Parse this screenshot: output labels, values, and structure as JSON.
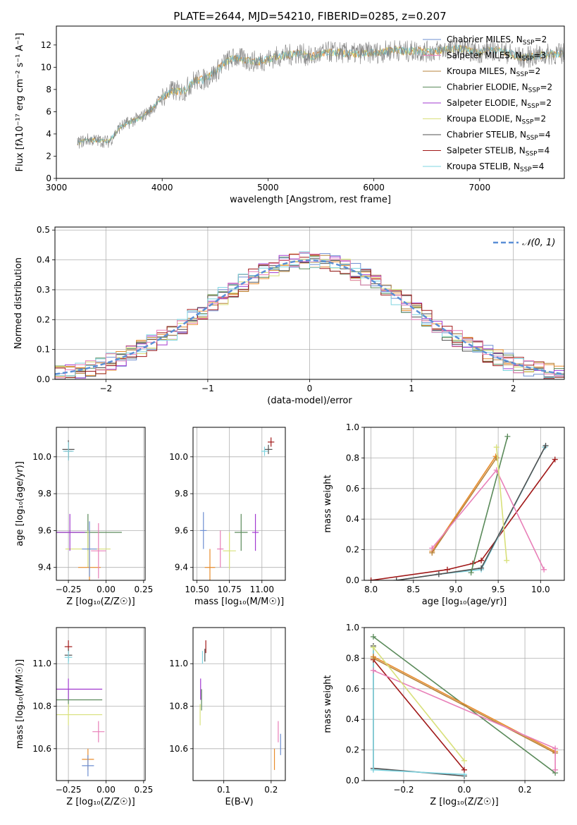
{
  "figure": {
    "title": "PLATE=2644, MJD=54210, FIBERID=0285, z=0.207"
  },
  "colors": {
    "Chabrier MILES": "#6e8fd2",
    "Salpeter MILES": "#e88c2b",
    "Kroupa MILES": "#b8843c",
    "Chabrier ELODIE": "#5a8a5a",
    "Salpeter ELODIE": "#a23ad0",
    "Kroupa ELODIE": "#d8e07a",
    "Chabrier STELIB": "#505050",
    "Salpeter STELIB": "#a01818",
    "Kroupa STELIB": "#7fd4e0",
    "pink": "#e87fb8",
    "normal": "#5b8fd6"
  },
  "legend_spectrum": [
    {
      "label": "Chabrier MILES, N",
      "sub": "SSP",
      "tail": "=2",
      "color": "#6e8fd2"
    },
    {
      "label": "Salpeter MILES, N",
      "sub": "SSP",
      "tail": "=3",
      "color": "#e87fb8"
    },
    {
      "label": "Kroupa MILES, N",
      "sub": "SSP",
      "tail": "=2",
      "color": "#b8843c"
    },
    {
      "label": "Chabrier ELODIE, N",
      "sub": "SSP",
      "tail": "=2",
      "color": "#5a8a5a"
    },
    {
      "label": "Salpeter ELODIE, N",
      "sub": "SSP",
      "tail": "=2",
      "color": "#a23ad0"
    },
    {
      "label": "Kroupa ELODIE, N",
      "sub": "SSP",
      "tail": "=2",
      "color": "#d8e07a"
    },
    {
      "label": "Chabrier STELIB, N",
      "sub": "SSP",
      "tail": "=4",
      "color": "#505050"
    },
    {
      "label": "Salpeter STELIB, N",
      "sub": "SSP",
      "tail": "=4",
      "color": "#a01818"
    },
    {
      "label": "Kroupa STELIB, N",
      "sub": "SSP",
      "tail": "=4",
      "color": "#7fd4e0"
    }
  ],
  "chart_data": [
    {
      "type": "line",
      "id": "spectrum",
      "xlabel": "wavelength [Angstrom, rest frame]",
      "ylabel": "Flux [fλ10⁻¹⁷ erg cm⁻² s⁻¹ A⁻¹]",
      "xlim": [
        3000,
        7800
      ],
      "ylim": [
        0,
        13.7
      ],
      "xticks": [
        3000,
        4000,
        5000,
        6000,
        7000
      ],
      "yticks": [
        0,
        2,
        4,
        6,
        8,
        10,
        12
      ],
      "grid": false,
      "legend": "right",
      "x": [
        3200,
        3300,
        3400,
        3500,
        3600,
        3700,
        3800,
        3900,
        4000,
        4100,
        4200,
        4300,
        4400,
        4500,
        4600,
        4700,
        4800,
        4900,
        5000,
        5100,
        5200,
        5300,
        5400,
        5500,
        5600,
        5700,
        5800,
        5900,
        6000,
        6100,
        6200,
        6300,
        6400,
        6500,
        6600,
        6700,
        6800,
        6900,
        7000,
        7100,
        7200,
        7300,
        7400,
        7500,
        7600,
        7700
      ],
      "y": [
        3.2,
        3.5,
        3.4,
        3.3,
        4.6,
        5.1,
        5.5,
        6.2,
        7.3,
        7.9,
        7.8,
        8.8,
        8.9,
        9.5,
        10.5,
        10.9,
        10.6,
        10.5,
        10.7,
        11.0,
        11.1,
        11.3,
        10.9,
        11.2,
        11.4,
        11.3,
        11.2,
        11.3,
        11.3,
        11.4,
        11.6,
        11.4,
        11.5,
        11.4,
        11.5,
        11.6,
        11.7,
        11.5,
        11.3,
        11.6,
        11.4,
        11.2,
        10.8,
        11.0,
        11.1,
        11.2
      ]
    },
    {
      "type": "line",
      "id": "residuals",
      "xlabel": "(data-model)/error",
      "ylabel": "Normed distribution",
      "xlim": [
        -2.5,
        2.5
      ],
      "ylim": [
        0,
        0.51
      ],
      "xticks": [
        -2,
        -1,
        0,
        1,
        2
      ],
      "yticks": [
        0.0,
        0.1,
        0.2,
        0.3,
        0.4,
        0.5
      ],
      "grid": true,
      "legend": "top-right",
      "legend_label": "𝒩(0, 1)"
    },
    {
      "type": "scatter",
      "id": "age-vs-Z",
      "xlabel": "Z [log₁₀(Z/Z☉)]",
      "ylabel": "age  [log₁₀(age/yr)]",
      "xlim": [
        -0.33,
        0.26
      ],
      "ylim": [
        9.33,
        10.16
      ],
      "xticks": [
        -0.25,
        0.0,
        0.25
      ],
      "yticks": [
        9.4,
        9.6,
        9.8,
        10.0
      ],
      "grid": true,
      "points": [
        {
          "x": -0.25,
          "y": 10.03,
          "xerr": 0.05,
          "yerr": 0.1,
          "c": "#a01818"
        },
        {
          "x": -0.25,
          "y": 10.04,
          "xerr": 0.08,
          "yerr": 0.1,
          "c": "#505050"
        },
        {
          "x": -0.25,
          "y": 10.03,
          "xerr": 0.07,
          "yerr": 0.1,
          "c": "#7fd4e0"
        },
        {
          "x": -0.12,
          "y": 9.59,
          "xerr": 0.45,
          "yerr": 0.2,
          "c": "#5a8a5a"
        },
        {
          "x": -0.12,
          "y": 9.5,
          "xerr": 0.3,
          "yerr": 0.2,
          "c": "#d8e07a"
        },
        {
          "x": -0.11,
          "y": 9.4,
          "xerr": 0.15,
          "yerr": 0.4,
          "c": "#e88c2b"
        },
        {
          "x": -0.11,
          "y": 9.5,
          "xerr": 0.1,
          "yerr": 0.3,
          "c": "#6e8fd2"
        },
        {
          "x": -0.05,
          "y": 9.49,
          "xerr": 0.1,
          "yerr": 0.3,
          "c": "#e87fb8"
        },
        {
          "x": -0.24,
          "y": 9.59,
          "xerr": 0.2,
          "yerr": 0.2,
          "c": "#a23ad0"
        }
      ]
    },
    {
      "type": "scatter",
      "id": "age-vs-mass",
      "xlabel": "mass [log₁₀(M/M☉)]",
      "ylabel": "",
      "xlim": [
        10.47,
        11.18
      ],
      "ylim": [
        9.33,
        10.16
      ],
      "xticks": [
        10.5,
        10.75,
        11.0
      ],
      "yticks": [
        9.4,
        9.6,
        9.8,
        10.0
      ],
      "grid": true,
      "points": [
        {
          "x": 11.07,
          "y": 10.08,
          "xerr": 0.05,
          "yerr": 0.05,
          "c": "#a01818"
        },
        {
          "x": 11.05,
          "y": 10.04,
          "xerr": 0.06,
          "yerr": 0.05,
          "c": "#505050"
        },
        {
          "x": 11.02,
          "y": 10.03,
          "xerr": 0.05,
          "yerr": 0.05,
          "c": "#7fd4e0"
        },
        {
          "x": 10.84,
          "y": 9.59,
          "xerr": 0.1,
          "yerr": 0.2,
          "c": "#5a8a5a"
        },
        {
          "x": 10.75,
          "y": 9.49,
          "xerr": 0.1,
          "yerr": 0.2,
          "c": "#d8e07a"
        },
        {
          "x": 10.6,
          "y": 9.4,
          "xerr": 0.08,
          "yerr": 0.2,
          "c": "#e88c2b"
        },
        {
          "x": 10.55,
          "y": 9.6,
          "xerr": 0.05,
          "yerr": 0.2,
          "c": "#6e8fd2"
        },
        {
          "x": 10.68,
          "y": 9.5,
          "xerr": 0.05,
          "yerr": 0.2,
          "c": "#e87fb8"
        },
        {
          "x": 10.95,
          "y": 9.59,
          "xerr": 0.05,
          "yerr": 0.2,
          "c": "#a23ad0"
        }
      ]
    },
    {
      "type": "line",
      "id": "massweight-vs-age",
      "xlabel": "age  [log₁₀(age/yr)]",
      "ylabel": "mass weight",
      "xlim": [
        7.92,
        10.28
      ],
      "ylim": [
        0,
        1.0
      ],
      "xticks": [
        8.0,
        8.5,
        9.0,
        9.5,
        10.0
      ],
      "yticks": [
        0.0,
        0.2,
        0.4,
        0.6,
        0.8,
        1.0
      ],
      "grid": true,
      "series": [
        {
          "c": "#a01818",
          "x": [
            8.0,
            8.9,
            9.2,
            9.3,
            10.17
          ],
          "y": [
            0.0,
            0.07,
            0.11,
            0.13,
            0.79
          ]
        },
        {
          "c": "#7fd4e0",
          "x": [
            8.3,
            8.8,
            9.3,
            10.05
          ],
          "y": [
            0.0,
            0.04,
            0.07,
            0.87
          ]
        },
        {
          "c": "#505050",
          "x": [
            8.3,
            8.8,
            9.3,
            10.06
          ],
          "y": [
            0.0,
            0.04,
            0.08,
            0.88
          ]
        },
        {
          "c": "#5a8a5a",
          "x": [
            9.18,
            9.61
          ],
          "y": [
            0.05,
            0.94
          ]
        },
        {
          "c": "#e88c2b",
          "x": [
            8.72,
            9.47
          ],
          "y": [
            0.19,
            0.81
          ]
        },
        {
          "c": "#b8843c",
          "x": [
            8.72,
            9.48
          ],
          "y": [
            0.18,
            0.8
          ]
        },
        {
          "c": "#e87fb8",
          "x": [
            8.72,
            9.48,
            10.04
          ],
          "y": [
            0.21,
            0.72,
            0.07
          ]
        },
        {
          "c": "#d8e07a",
          "x": [
            9.48,
            9.6
          ],
          "y": [
            0.87,
            0.13
          ]
        }
      ]
    },
    {
      "type": "scatter",
      "id": "mass-vs-Z",
      "xlabel": "Z [log₁₀(Z/Z☉)]",
      "ylabel": "mass [log₁₀(M/M☉)]",
      "xlim": [
        -0.33,
        0.26
      ],
      "ylim": [
        10.45,
        11.17
      ],
      "xticks": [
        -0.25,
        0.0,
        0.25
      ],
      "yticks": [
        10.6,
        10.8,
        11.0
      ],
      "grid": true,
      "points": [
        {
          "x": -0.25,
          "y": 11.08,
          "xerr": 0.05,
          "yerr": 0.06,
          "c": "#a01818"
        },
        {
          "x": -0.25,
          "y": 11.04,
          "xerr": 0.05,
          "yerr": 0.06,
          "c": "#505050"
        },
        {
          "x": -0.25,
          "y": 11.03,
          "xerr": 0.05,
          "yerr": 0.06,
          "c": "#7fd4e0"
        },
        {
          "x": -0.25,
          "y": 10.83,
          "xerr": 0.45,
          "yerr": 0.1,
          "c": "#5a8a5a"
        },
        {
          "x": -0.25,
          "y": 10.88,
          "xerr": 0.45,
          "yerr": 0.1,
          "c": "#a23ad0"
        },
        {
          "x": -0.25,
          "y": 10.76,
          "xerr": 0.45,
          "yerr": 0.1,
          "c": "#d8e07a"
        },
        {
          "x": -0.12,
          "y": 10.55,
          "xerr": 0.08,
          "yerr": 0.1,
          "c": "#e88c2b"
        },
        {
          "x": -0.12,
          "y": 10.52,
          "xerr": 0.08,
          "yerr": 0.1,
          "c": "#6e8fd2"
        },
        {
          "x": -0.05,
          "y": 10.68,
          "xerr": 0.08,
          "yerr": 0.1,
          "c": "#e87fb8"
        }
      ]
    },
    {
      "type": "scatter",
      "id": "mass-vs-EBV",
      "xlabel": "E(B-V)",
      "ylabel": "",
      "xlim": [
        0.035,
        0.23
      ],
      "ylim": [
        10.45,
        11.17
      ],
      "xticks": [
        0.1,
        0.2
      ],
      "yticks": [
        10.6,
        10.8,
        11.0
      ],
      "grid": true,
      "points": [
        {
          "x": 0.062,
          "y": 11.08,
          "yerr": 0.06,
          "c": "#a01818"
        },
        {
          "x": 0.06,
          "y": 11.04,
          "yerr": 0.06,
          "c": "#505050"
        },
        {
          "x": 0.055,
          "y": 11.03,
          "yerr": 0.06,
          "c": "#7fd4e0"
        },
        {
          "x": 0.053,
          "y": 10.83,
          "yerr": 0.1,
          "c": "#5a8a5a"
        },
        {
          "x": 0.051,
          "y": 10.88,
          "yerr": 0.1,
          "c": "#a23ad0"
        },
        {
          "x": 0.05,
          "y": 10.76,
          "yerr": 0.1,
          "c": "#d8e07a"
        },
        {
          "x": 0.207,
          "y": 10.55,
          "yerr": 0.1,
          "c": "#e88c2b"
        },
        {
          "x": 0.22,
          "y": 10.62,
          "yerr": 0.1,
          "c": "#6e8fd2"
        },
        {
          "x": 0.215,
          "y": 10.68,
          "yerr": 0.1,
          "c": "#e87fb8"
        }
      ]
    },
    {
      "type": "line",
      "id": "massweight-vs-Z",
      "xlabel": "Z [log₁₀(Z/Z☉)]",
      "ylabel": "mass weight",
      "xlim": [
        -0.33,
        0.33
      ],
      "ylim": [
        0,
        1.0
      ],
      "xticks": [
        -0.2,
        0.0,
        0.2
      ],
      "yticks": [
        0.0,
        0.2,
        0.4,
        0.6,
        0.8,
        1.0
      ],
      "grid": true,
      "series": [
        {
          "c": "#5a8a5a",
          "x": [
            -0.3,
            0.3
          ],
          "y": [
            0.94,
            0.05
          ]
        },
        {
          "c": "#505050",
          "x": [
            -0.3,
            -0.3,
            0.0
          ],
          "y": [
            0.88,
            0.08,
            0.03
          ]
        },
        {
          "c": "#7fd4e0",
          "x": [
            -0.3,
            -0.3,
            0.0
          ],
          "y": [
            0.87,
            0.07,
            0.04
          ]
        },
        {
          "c": "#a01818",
          "x": [
            -0.3,
            0.0
          ],
          "y": [
            0.79,
            0.07
          ]
        },
        {
          "c": "#e88c2b",
          "x": [
            -0.3,
            0.3
          ],
          "y": [
            0.81,
            0.19
          ]
        },
        {
          "c": "#b8843c",
          "x": [
            -0.3,
            0.3
          ],
          "y": [
            0.8,
            0.18
          ]
        },
        {
          "c": "#e87fb8",
          "x": [
            -0.3,
            0.3,
            0.3
          ],
          "y": [
            0.72,
            0.21,
            0.07
          ]
        },
        {
          "c": "#d8e07a",
          "x": [
            -0.3,
            0.0
          ],
          "y": [
            0.87,
            0.13
          ]
        }
      ]
    }
  ]
}
